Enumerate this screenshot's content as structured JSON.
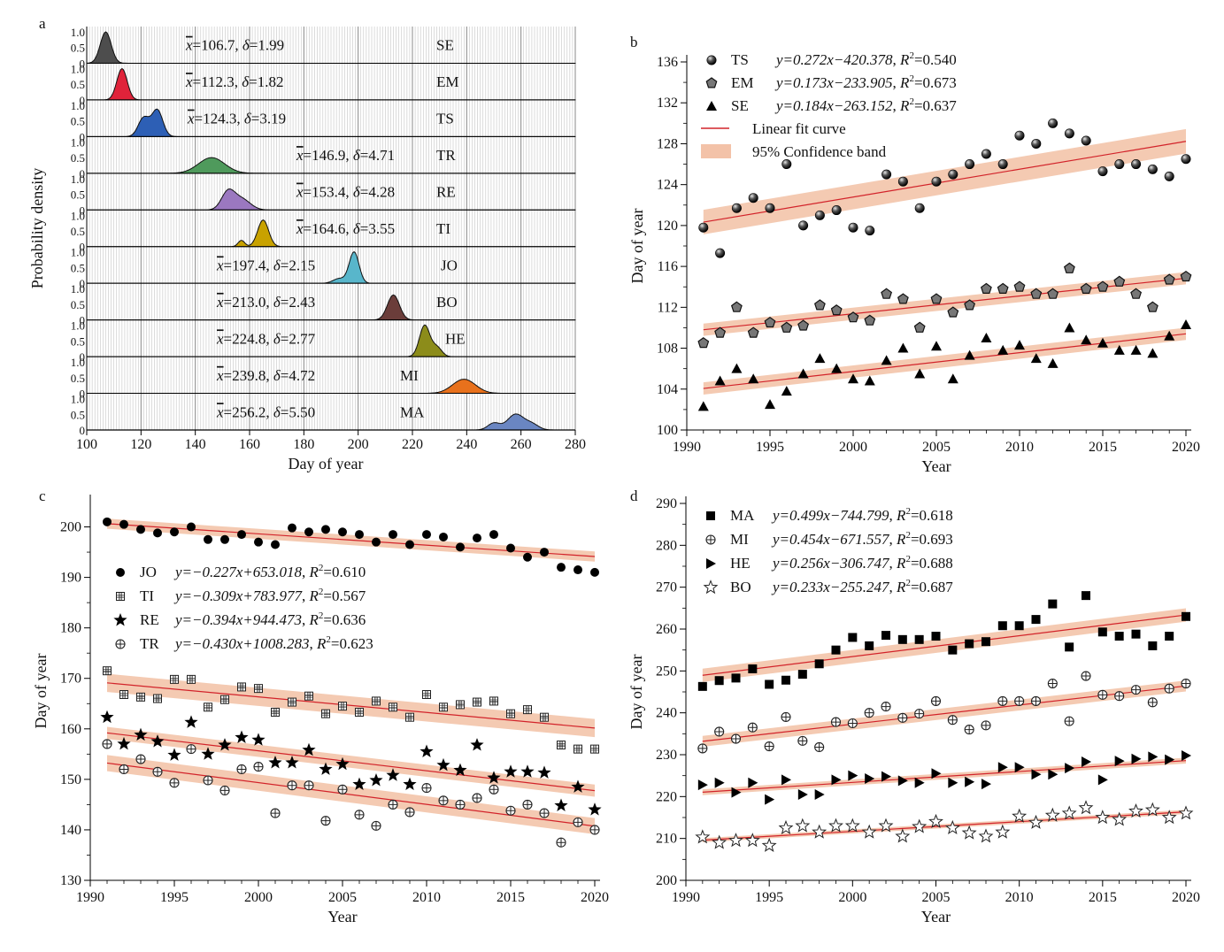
{
  "chart_data": [
    {
      "panel": "a",
      "type": "area",
      "xlabel": "Day of year",
      "ylabel": "Probability density",
      "xlim": [
        100,
        280
      ],
      "xticks": [
        100,
        120,
        140,
        160,
        180,
        200,
        220,
        240,
        260,
        280
      ],
      "row_yticks": [
        "1.0",
        "0.5",
        "0"
      ],
      "colors": {
        "SE": "#4d4d4d",
        "EM": "#e0233a",
        "TS": "#2d5fb5",
        "TR": "#4f9a5c",
        "RE": "#9b78c0",
        "TI": "#c8a200",
        "JO": "#58b6cb",
        "BO": "#6b3d3a",
        "HE": "#8c8c1a",
        "MI": "#e8711c",
        "MA": "#6a86c2"
      },
      "series": [
        {
          "name": "SE",
          "mean": 106.7,
          "sd": 1.99,
          "mean_text": "=106.7, ",
          "sd_text": "=1.99",
          "peaks": [
            [
              107,
              2.0,
              1.0
            ]
          ]
        },
        {
          "name": "EM",
          "mean": 112.3,
          "sd": 1.82,
          "mean_text": "=112.3, ",
          "sd_text": "=1.82",
          "peaks": [
            [
              113,
              1.9,
              1.0
            ]
          ]
        },
        {
          "name": "TS",
          "mean": 124.3,
          "sd": 3.19,
          "mean_text": "=124.3, ",
          "sd_text": "=3.19",
          "peaks": [
            [
              121,
              2.0,
              0.6
            ],
            [
              126,
              2.0,
              0.85
            ]
          ]
        },
        {
          "name": "TR",
          "mean": 146.9,
          "sd": 4.71,
          "mean_text": "=146.9, ",
          "sd_text": "=4.71",
          "peaks": [
            [
              146,
              4.8,
              0.5
            ]
          ]
        },
        {
          "name": "RE",
          "mean": 153.4,
          "sd": 4.28,
          "mean_text": "=153.4, ",
          "sd_text": "=4.28",
          "peaks": [
            [
              152,
              2.4,
              0.55
            ],
            [
              157,
              3.2,
              0.35
            ]
          ]
        },
        {
          "name": "TI",
          "mean": 164.6,
          "sd": 3.55,
          "mean_text": "=164.6, ",
          "sd_text": "=3.55",
          "peaks": [
            [
              157,
              1.2,
              0.2
            ],
            [
              165,
              2.0,
              0.85
            ]
          ]
        },
        {
          "name": "JO",
          "mean": 197.4,
          "sd": 2.15,
          "mean_text": "=197.4, ",
          "sd_text": "=2.15",
          "peaks": [
            [
              198.5,
              1.8,
              1.0
            ],
            [
              193,
              2.2,
              0.15
            ]
          ]
        },
        {
          "name": "BO",
          "mean": 213.0,
          "sd": 2.43,
          "mean_text": "=213.0, ",
          "sd_text": "=2.43",
          "peaks": [
            [
              213,
              2.2,
              0.8
            ]
          ]
        },
        {
          "name": "HE",
          "mean": 224.8,
          "sd": 2.77,
          "mean_text": "=224.8, ",
          "sd_text": "=2.77",
          "peaks": [
            [
              224.5,
              1.9,
              1.0
            ],
            [
              229,
              1.8,
              0.3
            ]
          ]
        },
        {
          "name": "MI",
          "mean": 239.8,
          "sd": 4.72,
          "mean_text": "=239.8, ",
          "sd_text": "=4.72",
          "peaks": [
            [
              239,
              4.2,
              0.45
            ]
          ]
        },
        {
          "name": "MA",
          "mean": 256.2,
          "sd": 5.5,
          "mean_text": "=256.2, ",
          "sd_text": "=5.50",
          "peaks": [
            [
              250,
              2.2,
              0.22
            ],
            [
              258,
              3.0,
              0.5
            ],
            [
              264,
              2.5,
              0.18
            ]
          ]
        }
      ]
    },
    {
      "panel": "b",
      "type": "scatter",
      "xlabel": "Year",
      "ylabel": "Day of year",
      "xlim": [
        1990,
        2020
      ],
      "ylim": [
        100,
        136
      ],
      "xticks": [
        1990,
        1995,
        2000,
        2005,
        2010,
        2015,
        2020
      ],
      "yticks": [
        100,
        104,
        108,
        112,
        116,
        120,
        124,
        128,
        132,
        136
      ],
      "x": [
        1991,
        1992,
        1993,
        1994,
        1995,
        1996,
        1997,
        1998,
        1999,
        2000,
        2001,
        2002,
        2003,
        2004,
        2005,
        2006,
        2007,
        2008,
        2009,
        2010,
        2011,
        2012,
        2013,
        2014,
        2015,
        2016,
        2017,
        2018,
        2019,
        2020
      ],
      "series": [
        {
          "name": "TS",
          "marker": "ball",
          "equation": "y=0.272x−420.378",
          "r2_text": "=0.540",
          "band": 1.2,
          "values": [
            119.8,
            117.3,
            121.7,
            122.7,
            121.7,
            126.0,
            120.0,
            121.0,
            121.5,
            119.8,
            119.5,
            125.0,
            124.3,
            121.7,
            124.3,
            125.0,
            126.0,
            127.0,
            126.0,
            128.8,
            128.0,
            130.0,
            129.0,
            128.3,
            125.3,
            126.0,
            126.0,
            125.5,
            124.8,
            126.5
          ]
        },
        {
          "name": "EM",
          "marker": "pentagon",
          "equation": "y=0.173x−233.905",
          "r2_text": "=0.673",
          "band": 0.6,
          "values": [
            108.5,
            109.5,
            112.0,
            109.5,
            110.5,
            110.0,
            110.2,
            112.2,
            111.7,
            111.0,
            110.7,
            113.3,
            112.8,
            110.0,
            112.8,
            111.5,
            112.2,
            113.8,
            113.8,
            114.0,
            113.3,
            113.3,
            115.8,
            113.8,
            114.0,
            114.5,
            113.3,
            112.0,
            114.7,
            115.0
          ]
        },
        {
          "name": "SE",
          "marker": "triangle",
          "equation": "y=0.184x−263.152",
          "r2_text": "=0.637",
          "band": 0.6,
          "values": [
            102.3,
            104.8,
            106.0,
            105.0,
            102.5,
            103.8,
            105.5,
            107.0,
            106.0,
            105.0,
            104.8,
            106.8,
            108.0,
            105.5,
            108.2,
            105.0,
            107.3,
            109.0,
            107.8,
            108.3,
            107.0,
            106.5,
            110.0,
            108.8,
            108.5,
            107.8,
            107.8,
            107.5,
            109.2,
            110.3
          ]
        }
      ],
      "legend_fit": "Linear fit curve",
      "legend_band": "95%   Confidence band"
    },
    {
      "panel": "c",
      "type": "scatter",
      "xlabel": "Year",
      "ylabel": "Day of year",
      "xlim": [
        1990,
        2020
      ],
      "ylim": [
        130,
        205
      ],
      "xticks": [
        1990,
        1995,
        2000,
        2005,
        2010,
        2015,
        2020
      ],
      "yticks": [
        130,
        140,
        150,
        160,
        170,
        180,
        190,
        200
      ],
      "x": [
        1991,
        1992,
        1993,
        1994,
        1995,
        1996,
        1997,
        1998,
        1999,
        2000,
        2001,
        2002,
        2003,
        2004,
        2005,
        2006,
        2007,
        2008,
        2009,
        2010,
        2011,
        2012,
        2013,
        2014,
        2015,
        2016,
        2017,
        2018,
        2019,
        2020
      ],
      "series": [
        {
          "name": "JO",
          "marker": "circle",
          "equation": "y=−0.227x+653.018",
          "r2_text": "=0.610",
          "band": 1.0,
          "values": [
            201.0,
            200.5,
            199.5,
            198.8,
            199.0,
            200.0,
            197.5,
            197.5,
            198.5,
            197.0,
            196.5,
            199.8,
            199.0,
            199.5,
            199.0,
            198.5,
            197.0,
            198.5,
            196.5,
            198.5,
            198.0,
            196.0,
            197.8,
            198.5,
            195.8,
            194.0,
            195.0,
            192.0,
            191.5,
            191.0
          ]
        },
        {
          "name": "TI",
          "marker": "square-grid",
          "equation": "y=−0.309x+783.977",
          "r2_text": "=0.567",
          "band": 1.8,
          "values": [
            171.5,
            166.8,
            166.3,
            166.0,
            169.8,
            169.8,
            164.3,
            165.8,
            168.3,
            168.0,
            163.3,
            165.3,
            166.5,
            163.0,
            164.5,
            163.3,
            165.5,
            164.3,
            162.3,
            166.8,
            164.3,
            164.8,
            165.3,
            165.5,
            163.0,
            163.8,
            162.3,
            156.8,
            156.0,
            156.0
          ]
        },
        {
          "name": "RE",
          "marker": "star",
          "equation": "y=−0.394x+944.473",
          "r2_text": "=0.636",
          "band": 1.2,
          "values": [
            162.3,
            157.0,
            158.8,
            157.5,
            154.8,
            161.3,
            155.0,
            156.8,
            158.3,
            157.8,
            153.3,
            153.3,
            155.8,
            152.0,
            153.0,
            149.0,
            149.8,
            150.8,
            149.0,
            155.5,
            152.8,
            151.8,
            156.8,
            150.3,
            151.5,
            151.5,
            151.3,
            144.8,
            148.5,
            144.0
          ]
        },
        {
          "name": "TR",
          "marker": "circle-plus",
          "equation": "y=−0.430x+1008.283",
          "r2_text": "=0.623",
          "band": 1.6,
          "values": [
            157.0,
            152.0,
            154.0,
            151.5,
            149.3,
            156.0,
            149.8,
            147.8,
            152.0,
            152.5,
            143.3,
            148.8,
            148.8,
            141.8,
            148.0,
            143.0,
            140.8,
            145.0,
            143.5,
            148.3,
            145.8,
            145.0,
            146.3,
            148.0,
            143.8,
            145.0,
            143.3,
            137.5,
            141.5,
            140.0
          ]
        }
      ]
    },
    {
      "panel": "d",
      "type": "scatter",
      "xlabel": "Year",
      "ylabel": "Day of year",
      "xlim": [
        1990,
        2020
      ],
      "ylim": [
        200,
        290
      ],
      "xticks": [
        1990,
        1995,
        2000,
        2005,
        2010,
        2015,
        2020
      ],
      "yticks": [
        200,
        210,
        220,
        230,
        240,
        250,
        260,
        270,
        280,
        290
      ],
      "x": [
        1991,
        1992,
        1993,
        1994,
        1995,
        1996,
        1997,
        1998,
        1999,
        2000,
        2001,
        2002,
        2003,
        2004,
        2005,
        2006,
        2007,
        2008,
        2009,
        2010,
        2011,
        2012,
        2013,
        2014,
        2015,
        2016,
        2017,
        2018,
        2019,
        2020
      ],
      "series": [
        {
          "name": "MA",
          "marker": "square",
          "equation": "y=0.499x−744.799",
          "r2_text": "=0.618",
          "band": 1.6,
          "values": [
            246.3,
            247.7,
            248.3,
            250.5,
            246.8,
            247.8,
            249.2,
            251.7,
            255.0,
            258.0,
            256.0,
            258.5,
            257.5,
            257.5,
            258.3,
            255.0,
            256.5,
            257.0,
            260.8,
            260.8,
            262.3,
            266.0,
            255.7,
            268.0,
            259.3,
            258.3,
            258.8,
            256.0,
            258.3,
            263.0
          ]
        },
        {
          "name": "MI",
          "marker": "circle-plus",
          "equation": "y=0.454x−671.557",
          "r2_text": "=0.693",
          "band": 1.3,
          "values": [
            231.5,
            235.5,
            233.8,
            236.5,
            232.0,
            239.0,
            233.3,
            231.8,
            237.8,
            237.5,
            240.0,
            241.5,
            238.8,
            239.8,
            242.8,
            238.3,
            236.0,
            237.0,
            242.8,
            242.8,
            242.8,
            247.0,
            238.0,
            248.8,
            244.3,
            244.0,
            245.5,
            242.5,
            245.8,
            247.0
          ]
        },
        {
          "name": "HE",
          "marker": "triangle-right",
          "equation": "y=0.256x−306.747",
          "r2_text": "=0.688",
          "band": 0.7,
          "values": [
            222.8,
            223.3,
            221.0,
            223.3,
            219.3,
            224.0,
            220.5,
            220.5,
            224.0,
            225.0,
            224.3,
            224.8,
            223.8,
            223.3,
            225.5,
            223.3,
            223.5,
            223.0,
            227.0,
            227.0,
            225.3,
            225.3,
            226.8,
            228.3,
            224.0,
            228.5,
            229.0,
            229.5,
            228.8,
            229.8
          ]
        },
        {
          "name": "BO",
          "marker": "star-open",
          "equation": "y=0.233x−255.247",
          "r2_text": "=0.687",
          "band": 0.5,
          "values": [
            210.3,
            209.0,
            209.5,
            209.5,
            208.3,
            212.5,
            213.0,
            211.5,
            213.0,
            213.0,
            211.5,
            213.0,
            210.5,
            212.8,
            214.0,
            212.5,
            211.3,
            210.5,
            211.5,
            215.3,
            213.8,
            215.5,
            216.0,
            217.3,
            215.0,
            214.5,
            216.5,
            216.8,
            215.0,
            216.0
          ]
        }
      ]
    }
  ]
}
